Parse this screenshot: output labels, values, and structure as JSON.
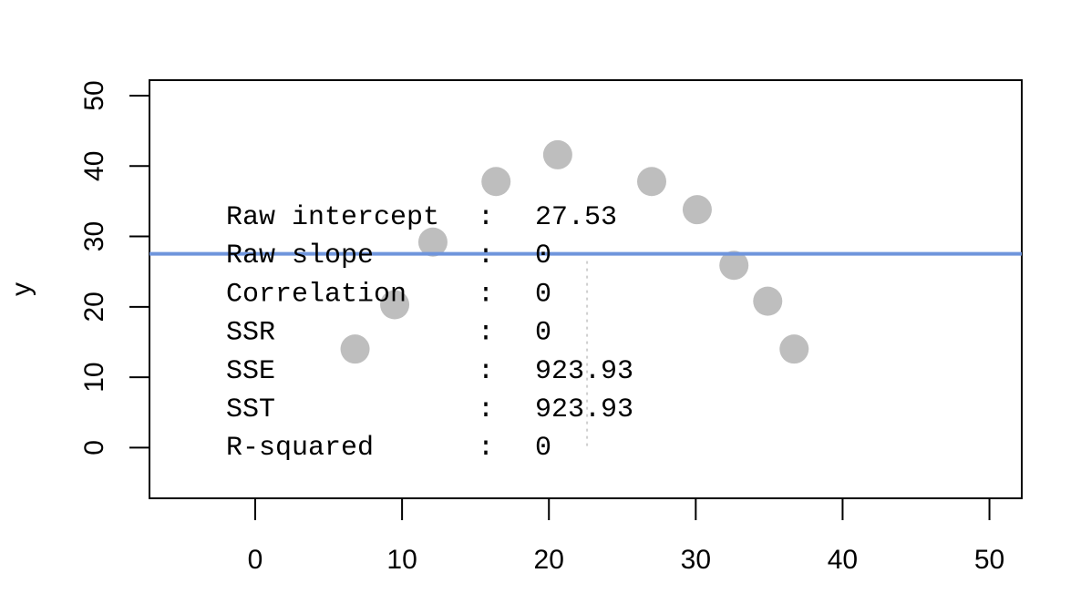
{
  "chart_data": {
    "type": "scatter",
    "xlabel": "",
    "ylabel": "y",
    "xlim": [
      -7.2,
      52.2
    ],
    "ylim": [
      -7.2,
      52.2
    ],
    "x_ticks": [
      "0",
      "10",
      "20",
      "30",
      "40",
      "50"
    ],
    "y_ticks": [
      "0",
      "10",
      "20",
      "30",
      "40",
      "50"
    ],
    "grid": false,
    "series": [
      {
        "points": [
          {
            "x": 6.8,
            "y": 14.0
          },
          {
            "x": 9.5,
            "y": 20.3
          },
          {
            "x": 12.1,
            "y": 29.2
          },
          {
            "x": 16.4,
            "y": 37.8
          },
          {
            "x": 20.6,
            "y": 41.6
          },
          {
            "x": 27.0,
            "y": 37.8
          },
          {
            "x": 30.1,
            "y": 33.8
          },
          {
            "x": 32.6,
            "y": 25.9
          },
          {
            "x": 34.9,
            "y": 20.8
          },
          {
            "x": 36.7,
            "y": 14.0
          }
        ],
        "color": "#bebebe"
      }
    ],
    "regression_line": {
      "intercept": 27.53,
      "slope": 0,
      "color": "#6f95dc"
    },
    "mean_marker_line": {
      "x": 22.6,
      "y_from": 0,
      "y_to": 26.5,
      "color": "#cfcfcf"
    },
    "stats": [
      {
        "label": "Raw intercept",
        "sep": ":",
        "value": "27.53"
      },
      {
        "label": "Raw slope",
        "sep": ":",
        "value": "0"
      },
      {
        "label": "Correlation",
        "sep": ":",
        "value": "0"
      },
      {
        "label": "SSR",
        "sep": ":",
        "value": "0"
      },
      {
        "label": "SSE",
        "sep": ":",
        "value": "923.93"
      },
      {
        "label": "SST",
        "sep": ":",
        "value": "923.93"
      },
      {
        "label": "R-squared",
        "sep": ":",
        "value": "0"
      }
    ]
  }
}
